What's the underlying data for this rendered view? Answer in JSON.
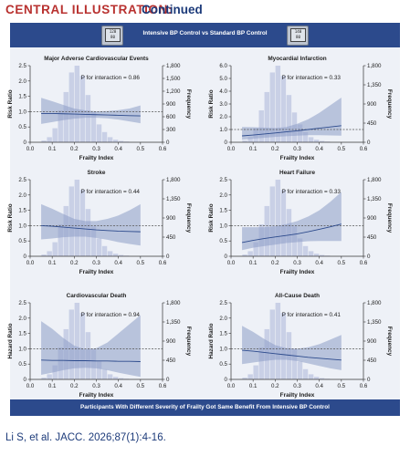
{
  "banner": {
    "label": "CENTRAL ILLUSTRATION:",
    "sub": "Continued"
  },
  "header": {
    "title": "Intensive BP Control vs Standard BP Control",
    "left_icon": "blood-pressure-monitor",
    "left_icon_text": [
      "120",
      "80"
    ],
    "right_icon": "blood-pressure-monitor",
    "right_icon_text": [
      "140",
      "80"
    ]
  },
  "footer": {
    "text": "Participants With Different Severity of Frailty Got Same Benefit From Intensive BP Control"
  },
  "citation": "Li S, et al. JACC. 2026;87(1):4-16.",
  "colors": {
    "accent_red": "#b8312f",
    "navy": "#2c4a8c",
    "bar": "#c9d0e6",
    "band": "#8d9cc6",
    "line": "#2c4a8c",
    "reference": "#555555"
  },
  "chart_data": [
    {
      "type": "line",
      "title": "Major Adverse Cardiovascular Events",
      "xlabel": "Frailty Index",
      "ylabel": "Risk Ratio",
      "y2label": "Frequency",
      "xlim": [
        0.0,
        0.6
      ],
      "xticks": [
        0.0,
        0.1,
        0.2,
        0.3,
        0.4,
        0.5,
        0.6
      ],
      "ylim": [
        0,
        2.5
      ],
      "yticks": [
        0,
        0.5,
        1.0,
        1.5,
        2.0,
        2.5
      ],
      "yticklabels": [
        "0",
        "0.5",
        "1.0",
        "1.5",
        "2.0",
        "2.5"
      ],
      "y2lim": [
        0,
        1800
      ],
      "y2ticks": [
        0,
        300,
        600,
        900,
        1200,
        1500,
        1800
      ],
      "y2ticklabels": [
        "0",
        "300",
        "600",
        "900",
        "1,200",
        "1,500",
        "1,800"
      ],
      "annotation": "P for interaction = 0.86",
      "reference_line": 1.0,
      "histogram": {
        "bin_start": 0.05,
        "bin_width": 0.025,
        "counts": [
          40,
          120,
          330,
          750,
          1180,
          1640,
          1800,
          1560,
          1110,
          700,
          420,
          240,
          120,
          60,
          30,
          15
        ]
      },
      "curve": {
        "x": [
          0.05,
          0.1,
          0.15,
          0.2,
          0.25,
          0.3,
          0.35,
          0.4,
          0.45,
          0.5
        ],
        "estimate": [
          0.94,
          0.94,
          0.93,
          0.92,
          0.91,
          0.9,
          0.89,
          0.88,
          0.87,
          0.86
        ],
        "lower": [
          0.6,
          0.66,
          0.72,
          0.77,
          0.8,
          0.8,
          0.78,
          0.74,
          0.68,
          0.62
        ],
        "upper": [
          1.45,
          1.34,
          1.22,
          1.1,
          1.04,
          1.01,
          1.02,
          1.05,
          1.1,
          1.2
        ]
      }
    },
    {
      "type": "line",
      "title": "Myocardial Infarction",
      "xlabel": "Frailty Index",
      "ylabel": "Risk Ratio",
      "y2label": "Frequency",
      "xlim": [
        0.0,
        0.6
      ],
      "xticks": [
        0.0,
        0.1,
        0.2,
        0.3,
        0.4,
        0.5,
        0.6
      ],
      "ylim": [
        0,
        6.0
      ],
      "yticks": [
        0,
        1.0,
        2.0,
        3.0,
        4.0,
        5.0,
        6.0
      ],
      "yticklabels": [
        "0",
        "1.0",
        "2.0",
        "3.0",
        "4.0",
        "5.0",
        "6.0"
      ],
      "y2lim": [
        0,
        1800
      ],
      "y2ticks": [
        0,
        450,
        900,
        1350,
        1800
      ],
      "y2ticklabels": [
        "0",
        "450",
        "900",
        "1,350",
        "1,800"
      ],
      "annotation": "P for interaction = 0.33",
      "reference_line": 1.0,
      "histogram": {
        "bin_start": 0.05,
        "bin_width": 0.025,
        "counts": [
          40,
          120,
          330,
          750,
          1180,
          1640,
          1800,
          1560,
          1110,
          700,
          420,
          240,
          120,
          60,
          30,
          15
        ]
      },
      "curve": {
        "x": [
          0.05,
          0.1,
          0.15,
          0.2,
          0.25,
          0.3,
          0.35,
          0.4,
          0.45,
          0.5
        ],
        "estimate": [
          0.5,
          0.57,
          0.65,
          0.73,
          0.82,
          0.9,
          1.0,
          1.1,
          1.2,
          1.3
        ],
        "lower": [
          0.2,
          0.28,
          0.35,
          0.42,
          0.47,
          0.52,
          0.55,
          0.55,
          0.54,
          0.52
        ],
        "upper": [
          1.2,
          1.18,
          1.15,
          1.12,
          1.2,
          1.45,
          1.8,
          2.3,
          2.9,
          3.5
        ]
      }
    },
    {
      "type": "line",
      "title": "Stroke",
      "xlabel": "Frailty Index",
      "ylabel": "Risk Ratio",
      "y2label": "Frequency",
      "xlim": [
        0.0,
        0.6
      ],
      "xticks": [
        0.0,
        0.1,
        0.2,
        0.3,
        0.4,
        0.5,
        0.6
      ],
      "ylim": [
        0,
        2.5
      ],
      "yticks": [
        0,
        0.5,
        1.0,
        1.5,
        2.0,
        2.5
      ],
      "yticklabels": [
        "0",
        "0.5",
        "1.0",
        "1.5",
        "2.0",
        "2.5"
      ],
      "y2lim": [
        0,
        1800
      ],
      "y2ticks": [
        0,
        450,
        900,
        1350,
        1800
      ],
      "y2ticklabels": [
        "0",
        "450",
        "900",
        "1,350",
        "1,800"
      ],
      "annotation": "P for interaction = 0.44",
      "reference_line": 1.0,
      "histogram": {
        "bin_start": 0.05,
        "bin_width": 0.025,
        "counts": [
          40,
          120,
          330,
          750,
          1180,
          1640,
          1800,
          1560,
          1110,
          700,
          420,
          240,
          120,
          60,
          30,
          15
        ]
      },
      "curve": {
        "x": [
          0.05,
          0.1,
          0.15,
          0.2,
          0.25,
          0.3,
          0.35,
          0.4,
          0.45,
          0.5
        ],
        "estimate": [
          1.0,
          0.98,
          0.95,
          0.92,
          0.89,
          0.86,
          0.84,
          0.82,
          0.81,
          0.8
        ],
        "lower": [
          0.55,
          0.58,
          0.62,
          0.64,
          0.64,
          0.6,
          0.54,
          0.46,
          0.4,
          0.35
        ],
        "upper": [
          1.7,
          1.55,
          1.38,
          1.22,
          1.15,
          1.15,
          1.22,
          1.33,
          1.5,
          1.7
        ]
      }
    },
    {
      "type": "line",
      "title": "Heart Failure",
      "xlabel": "Frailty Index",
      "ylabel": "Risk Ratio",
      "y2label": "Frequency",
      "xlim": [
        0.0,
        0.6
      ],
      "xticks": [
        0.0,
        0.1,
        0.2,
        0.3,
        0.4,
        0.5,
        0.6
      ],
      "ylim": [
        0,
        2.5
      ],
      "yticks": [
        0,
        0.5,
        1.0,
        1.5,
        2.0,
        2.5
      ],
      "yticklabels": [
        "0",
        "0.5",
        "1.0",
        "1.5",
        "2.0",
        "2.5"
      ],
      "y2lim": [
        0,
        1800
      ],
      "y2ticks": [
        0,
        450,
        900,
        1350,
        1800
      ],
      "y2ticklabels": [
        "0",
        "450",
        "900",
        "1,350",
        "1,800"
      ],
      "annotation": "P for interaction = 0.33",
      "reference_line": 1.0,
      "histogram": {
        "bin_start": 0.05,
        "bin_width": 0.025,
        "counts": [
          40,
          120,
          330,
          750,
          1180,
          1640,
          1800,
          1560,
          1110,
          700,
          420,
          240,
          120,
          60,
          30,
          15
        ]
      },
      "curve": {
        "x": [
          0.05,
          0.1,
          0.15,
          0.2,
          0.25,
          0.3,
          0.35,
          0.4,
          0.45,
          0.5
        ],
        "estimate": [
          0.45,
          0.52,
          0.58,
          0.63,
          0.68,
          0.73,
          0.8,
          0.88,
          0.96,
          1.05
        ],
        "lower": [
          0.2,
          0.28,
          0.33,
          0.38,
          0.43,
          0.46,
          0.49,
          0.5,
          0.5,
          0.5
        ],
        "upper": [
          0.95,
          0.95,
          0.95,
          0.98,
          1.05,
          1.15,
          1.3,
          1.5,
          1.78,
          2.1
        ]
      }
    },
    {
      "type": "line",
      "title": "Cardiovascular Death",
      "xlabel": "Frailty Index",
      "ylabel": "Hazard Ratio",
      "y2label": "Frequency",
      "xlim": [
        0.0,
        0.6
      ],
      "xticks": [
        0.0,
        0.1,
        0.2,
        0.3,
        0.4,
        0.5,
        0.6
      ],
      "ylim": [
        0,
        2.5
      ],
      "yticks": [
        0,
        0.5,
        1.0,
        1.5,
        2.0,
        2.5
      ],
      "yticklabels": [
        "0",
        "0.5",
        "1.0",
        "1.5",
        "2.0",
        "2.5"
      ],
      "y2lim": [
        0,
        1800
      ],
      "y2ticks": [
        0,
        450,
        900,
        1350,
        1800
      ],
      "y2ticklabels": [
        "0",
        "450",
        "900",
        "1,350",
        "1,800"
      ],
      "annotation": "P for interaction = 0.94",
      "reference_line": 1.0,
      "histogram": {
        "bin_start": 0.05,
        "bin_width": 0.025,
        "counts": [
          40,
          120,
          330,
          750,
          1180,
          1640,
          1800,
          1560,
          1110,
          700,
          420,
          240,
          120,
          60,
          30,
          15
        ]
      },
      "curve": {
        "x": [
          0.05,
          0.1,
          0.15,
          0.2,
          0.25,
          0.3,
          0.35,
          0.4,
          0.45,
          0.5
        ],
        "estimate": [
          0.63,
          0.62,
          0.62,
          0.61,
          0.61,
          0.6,
          0.6,
          0.59,
          0.59,
          0.58
        ],
        "lower": [
          0.15,
          0.22,
          0.3,
          0.36,
          0.38,
          0.36,
          0.3,
          0.22,
          0.15,
          0.08
        ],
        "upper": [
          1.9,
          1.65,
          1.35,
          1.1,
          0.98,
          1.02,
          1.2,
          1.5,
          1.8,
          2.1
        ]
      }
    },
    {
      "type": "line",
      "title": "All-Cause Death",
      "xlabel": "Frailty Index",
      "ylabel": "Hazard Ratio",
      "y2label": "Frequency",
      "xlim": [
        0.0,
        0.6
      ],
      "xticks": [
        0.0,
        0.1,
        0.2,
        0.3,
        0.4,
        0.5,
        0.6
      ],
      "ylim": [
        0,
        2.5
      ],
      "yticks": [
        0,
        0.5,
        1.0,
        1.5,
        2.0,
        2.5
      ],
      "yticklabels": [
        "0",
        "0.5",
        "1.0",
        "1.5",
        "2.0",
        "2.5"
      ],
      "y2lim": [
        0,
        1800
      ],
      "y2ticks": [
        0,
        450,
        900,
        1350,
        1800
      ],
      "y2ticklabels": [
        "0",
        "450",
        "900",
        "1,350",
        "1,800"
      ],
      "annotation": "P for interaction = 0.41",
      "reference_line": 1.0,
      "histogram": {
        "bin_start": 0.05,
        "bin_width": 0.025,
        "counts": [
          40,
          120,
          330,
          750,
          1180,
          1640,
          1800,
          1560,
          1110,
          700,
          420,
          240,
          120,
          60,
          30,
          15
        ]
      },
      "curve": {
        "x": [
          0.05,
          0.1,
          0.15,
          0.2,
          0.25,
          0.3,
          0.35,
          0.4,
          0.45,
          0.5
        ],
        "estimate": [
          0.95,
          0.92,
          0.88,
          0.84,
          0.8,
          0.76,
          0.72,
          0.69,
          0.66,
          0.63
        ],
        "lower": [
          0.5,
          0.55,
          0.6,
          0.64,
          0.64,
          0.6,
          0.52,
          0.44,
          0.36,
          0.3
        ],
        "upper": [
          1.75,
          1.55,
          1.32,
          1.12,
          1.02,
          1.0,
          1.05,
          1.15,
          1.3,
          1.45
        ]
      }
    }
  ]
}
